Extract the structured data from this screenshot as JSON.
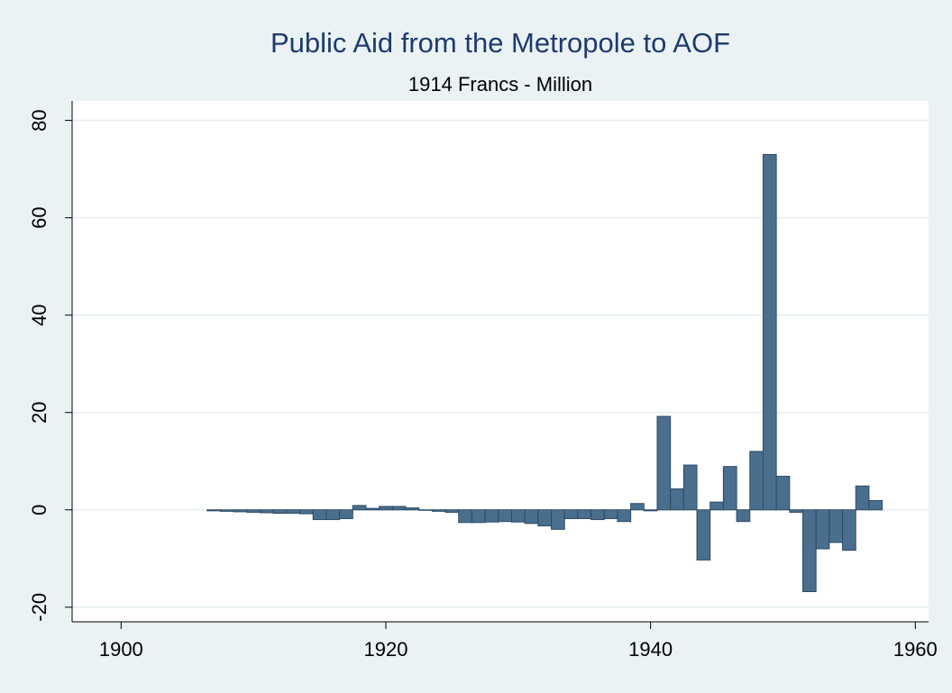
{
  "chart_data": {
    "type": "bar",
    "title": "Public Aid from the Metropole to AOF",
    "subtitle": "1914 Francs - Million",
    "x": [
      1907,
      1908,
      1909,
      1910,
      1911,
      1912,
      1913,
      1914,
      1915,
      1916,
      1917,
      1918,
      1919,
      1920,
      1921,
      1922,
      1923,
      1924,
      1925,
      1926,
      1927,
      1928,
      1929,
      1930,
      1931,
      1932,
      1933,
      1934,
      1935,
      1936,
      1937,
      1938,
      1939,
      1940,
      1941,
      1942,
      1943,
      1944,
      1945,
      1946,
      1947,
      1948,
      1949,
      1950,
      1951,
      1952,
      1953,
      1954,
      1955,
      1956,
      1957
    ],
    "values": [
      -0.2,
      -0.3,
      -0.4,
      -0.5,
      -0.6,
      -0.7,
      -0.7,
      -0.8,
      -2.0,
      -2.0,
      -1.8,
      0.9,
      0.3,
      0.7,
      0.7,
      0.4,
      -0.1,
      -0.3,
      -0.5,
      -2.6,
      -2.6,
      -2.5,
      -2.4,
      -2.5,
      -2.8,
      -3.3,
      -4.0,
      -1.8,
      -1.8,
      -2.0,
      -1.8,
      -2.4,
      1.3,
      -0.2,
      19.2,
      4.3,
      9.2,
      -10.3,
      1.6,
      8.9,
      -2.4,
      12.0,
      73.0,
      6.9,
      -0.5,
      -16.8,
      -8.0,
      -6.7,
      -8.3,
      4.9,
      1.9
    ],
    "color": "#4a6f8e",
    "xlim": [
      1896.3,
      1961
    ],
    "xticks": [
      1900,
      1920,
      1940,
      1960
    ],
    "ylim": [
      -23,
      84
    ],
    "yticks": [
      -20,
      0,
      20,
      40,
      60,
      80
    ],
    "grid": true
  }
}
